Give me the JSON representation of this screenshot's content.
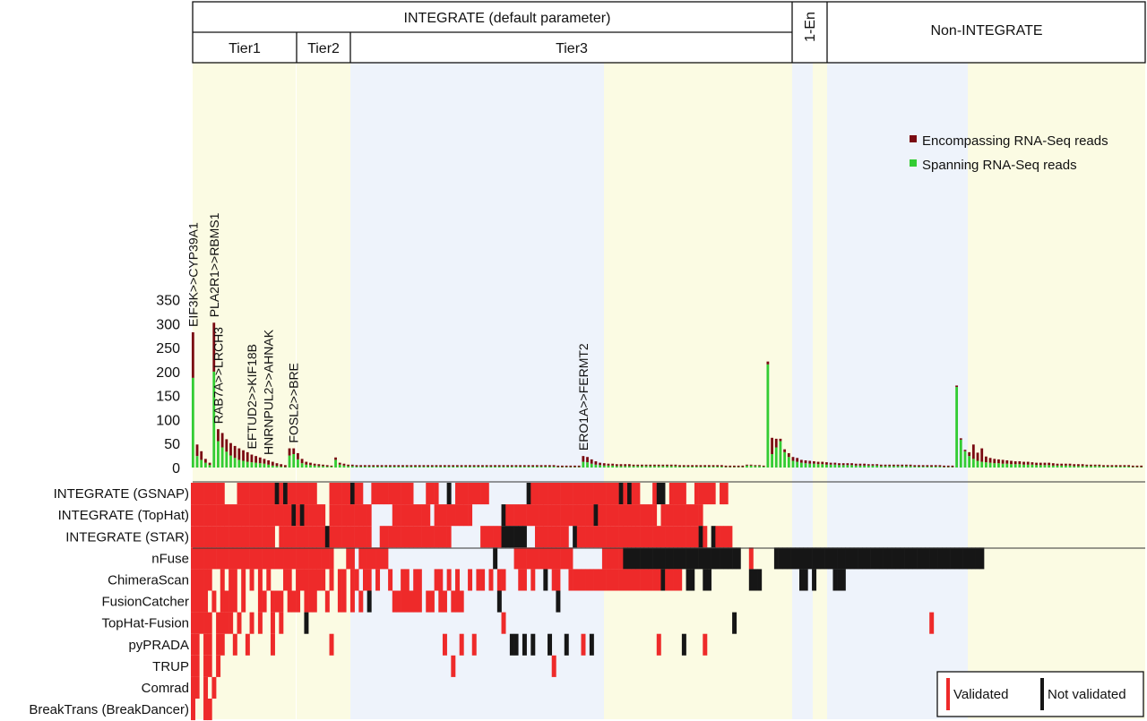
{
  "header": {
    "integrate_title": "INTEGRATE (default parameter)",
    "tier1": "Tier1",
    "tier2": "Tier2",
    "tier3": "Tier3",
    "one_en": "1-En",
    "non_integrate": "Non-INTEGRATE"
  },
  "legend_top": {
    "encompassing": "Encompassing RNA-Seq reads",
    "spanning": "Spanning RNA-Seq reads"
  },
  "legend_bottom": {
    "validated": "Validated",
    "not_validated": "Not validated"
  },
  "colors": {
    "encompassing": "#7a0a12",
    "spanning": "#33cc33",
    "validated": "#ee2a2a",
    "not_validated": "#161616",
    "tier_yellow": "#fbfbe3",
    "tier_blue": "#eef3fb"
  },
  "annotations": [
    {
      "label": "EIF3K>>CYP39A1",
      "index": 0
    },
    {
      "label": "PLA2R1>>RBMS1",
      "index": 5
    },
    {
      "label": "RAB7A>>LRCH3",
      "index": 6
    },
    {
      "label": "EFTUD2>>KIF18B",
      "index": 14
    },
    {
      "label": "HNRNPUL2>>AHNAK",
      "index": 18
    },
    {
      "label": "FOSL2>>BRE",
      "index": 24
    },
    {
      "label": "ERO1A>>FERMT2",
      "index": 93
    }
  ],
  "chart_data": [
    {
      "type": "bar",
      "stacked": true,
      "yticks": [
        0,
        50,
        100,
        150,
        200,
        250,
        300,
        350
      ],
      "ylim": [
        0,
        400
      ],
      "groups": [
        {
          "name": "Tier1",
          "from": 0,
          "to": 22
        },
        {
          "name": "Tier2",
          "from": 23,
          "to": 33
        },
        {
          "name": "Tier3",
          "from": 34,
          "to": 131
        },
        {
          "name": "1-En",
          "from": 132,
          "to": 136
        },
        {
          "name": "Non-INTEGRATE",
          "from": 137,
          "to": 218
        }
      ],
      "series": [
        {
          "name": "Spanning RNA-Seq reads",
          "values": [
            187,
            24,
            16,
            10,
            5,
            200,
            55,
            42,
            33,
            25,
            20,
            16,
            14,
            12,
            11,
            10,
            9,
            8,
            6,
            4,
            3,
            2,
            1,
            25,
            28,
            17,
            9,
            6,
            5,
            4,
            3,
            3,
            2,
            2,
            16,
            6,
            4,
            3,
            3,
            2,
            2,
            2,
            2,
            2,
            2,
            2,
            2,
            2,
            2,
            2,
            2,
            2,
            2,
            2,
            2,
            2,
            2,
            2,
            2,
            2,
            2,
            2,
            2,
            2,
            2,
            2,
            2,
            2,
            2,
            2,
            2,
            2,
            2,
            2,
            2,
            2,
            2,
            2,
            2,
            2,
            2,
            2,
            2,
            2,
            2,
            2,
            2,
            1,
            1,
            1,
            1,
            1,
            1,
            12,
            11,
            8,
            6,
            5,
            4,
            4,
            4,
            3,
            3,
            3,
            3,
            3,
            3,
            3,
            3,
            3,
            3,
            3,
            3,
            3,
            3,
            3,
            2,
            2,
            2,
            2,
            2,
            2,
            2,
            2,
            2,
            2,
            2,
            1,
            1,
            1,
            1,
            1,
            4,
            4,
            3,
            3,
            2,
            215,
            28,
            42,
            55,
            32,
            22,
            14,
            12,
            10,
            9,
            8,
            8,
            7,
            7,
            6,
            6,
            6,
            5,
            5,
            5,
            5,
            4,
            4,
            4,
            4,
            4,
            4,
            3,
            3,
            3,
            3,
            3,
            3,
            3,
            3,
            2,
            2,
            2,
            2,
            2,
            2,
            2,
            1,
            1,
            1,
            168,
            58,
            34,
            24,
            18,
            14,
            12,
            11,
            10,
            9,
            9,
            8,
            8,
            7,
            7,
            7,
            6,
            6,
            6,
            5,
            5,
            5,
            5,
            4,
            4,
            4,
            4,
            4,
            3,
            3,
            3,
            3,
            3,
            3,
            3,
            2,
            2,
            2,
            2,
            2,
            2,
            2,
            1,
            1,
            1
          ]
        },
        {
          "name": "Encompassing RNA-Seq reads",
          "values": [
            95,
            24,
            18,
            8,
            5,
            102,
            25,
            30,
            26,
            26,
            25,
            24,
            22,
            20,
            16,
            14,
            12,
            10,
            9,
            8,
            6,
            5,
            4,
            15,
            12,
            13,
            9,
            6,
            5,
            4,
            4,
            3,
            3,
            2,
            5,
            4,
            4,
            3,
            3,
            3,
            3,
            3,
            3,
            3,
            3,
            3,
            3,
            3,
            3,
            3,
            3,
            3,
            3,
            3,
            3,
            3,
            3,
            3,
            3,
            3,
            3,
            3,
            3,
            3,
            3,
            3,
            3,
            3,
            3,
            3,
            3,
            3,
            3,
            3,
            3,
            3,
            3,
            3,
            3,
            3,
            3,
            3,
            3,
            3,
            3,
            3,
            3,
            3,
            3,
            3,
            3,
            3,
            3,
            12,
            11,
            9,
            7,
            5,
            5,
            4,
            4,
            4,
            4,
            4,
            4,
            3,
            3,
            3,
            3,
            3,
            3,
            3,
            3,
            3,
            3,
            3,
            3,
            3,
            3,
            3,
            3,
            3,
            3,
            3,
            3,
            3,
            3,
            3,
            3,
            3,
            3,
            3,
            2,
            2,
            2,
            2,
            2,
            6,
            34,
            18,
            5,
            6,
            8,
            8,
            8,
            6,
            6,
            6,
            5,
            5,
            5,
            5,
            4,
            4,
            4,
            4,
            4,
            4,
            4,
            4,
            4,
            3,
            3,
            3,
            3,
            3,
            3,
            3,
            3,
            3,
            3,
            3,
            3,
            3,
            3,
            3,
            3,
            3,
            3,
            3,
            3,
            3,
            3,
            3,
            3,
            8,
            30,
            17,
            28,
            12,
            10,
            9,
            8,
            8,
            7,
            7,
            6,
            6,
            6,
            6,
            5,
            5,
            5,
            5,
            5,
            5,
            4,
            4,
            4,
            4,
            4,
            4,
            4,
            3,
            3,
            3,
            3,
            3,
            3,
            3,
            3,
            3,
            3,
            3,
            3,
            3,
            3,
            3,
            3,
            2
          ]
        }
      ]
    },
    {
      "type": "heatmap",
      "value_legend": {
        "R": "Validated",
        "K": "Not validated"
      },
      "rows": [
        {
          "name": "INTEGRATE (GSNAP)",
          "pattern": "RRRRRRRR...RRRRRRRRRKRKRRRRRRR...RRRRRKRR..RRRRRRRRRR...RRR..K.RRRRRRRR.........KRRRRRRRRRRRRRRRRRRRRRKRKRR...RKK.RRRR..RRRRR.RR"
        },
        {
          "name": "INTEGRATE (TopHat)",
          "pattern": "RRRRRRRRRRRRRRRRRRRRRRRRKRKRRRRR.RRRRRRRRRR.....RRRRRRRRR.RRRRRRRRR.......KRRRRRRRRRRRRRRRRRRRRRKRRRRRRRRRRRRRR.RRRRRRRRRR"
        },
        {
          "name": "INTEGRATE (STAR)",
          "pattern": "RRRRRRRRRRRRRRRRRRRR.RRRRRRRRRRRKRRRRRRRRRR..RRRRRRRRRRRRRRRRR.......RRRRRKKKKKK..RRRRRRRR.KRRRRRRRRRRRRRRRRRRRRRRRRRRRRRKR.KRRRR"
        },
        {
          "name": "nFuse",
          "pattern": "RRRRRRRRRRRRRRRRRRRRRRRRRRRRRRRRRR...RR.RRRRRRR.........................K....RRRRRRRRRRRRRR.......RRRRRKKKKKKKKKKKKKKKKKKKKKKKKKKKK..R.....KKKKKKKKKKKKKKKKKKKKKKKKKKKKKKKKKKKKKKKKKKKKKKKKKK"
        },
        {
          "name": "ChimeraScan",
          "pattern": "RRRRR..R.RR.R.R.R.R...RR.RRRRRRR.R.RR.RR.RR.R..R..RR.RR...RR.R.R..R.RR.R.RR...RR.R..K.RR..RRRRRRRRRRRRRRRRRRRRRRKRRRR.KK..KK.........KKK.........KK.K....KKK"
        },
        {
          "name": "FusionCatcher",
          "pattern": "RRRR.R.RRRR.R...RR.RRR.RRR.RRR..R..RR.R.R.K.....RRRRRRR.RR.RR.RRR........K.............K"
        },
        {
          "name": "TopHat-Fusion",
          "pattern": "RRRRR.RRRR.R..R.R..R.R.....K..............................................R......................................................K..............................................R"
        },
        {
          "name": "pyPRADA",
          "pattern": "RR.RR.RR..R..R.....R.............R..........................R...R..R........KK.K.K...K...K...R.K...............R.....K....R"
        },
        {
          "name": "TRUP",
          "pattern": "RR.RR.R.......................................................R.......................R"
        },
        {
          "name": "Comrad",
          "pattern": "RR.R.R"
        },
        {
          "name": "BreakTrans (BreakDancer)",
          "pattern": "R..RR"
        }
      ]
    }
  ]
}
